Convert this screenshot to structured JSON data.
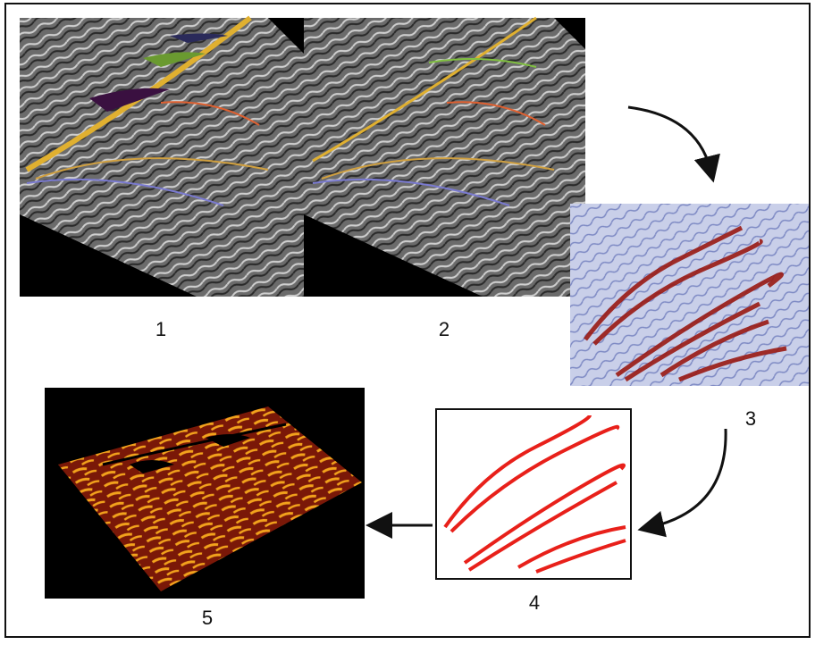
{
  "panels": [
    {
      "label": "1"
    },
    {
      "label": "2"
    },
    {
      "label": "3"
    },
    {
      "label": "4"
    },
    {
      "label": "5"
    }
  ]
}
